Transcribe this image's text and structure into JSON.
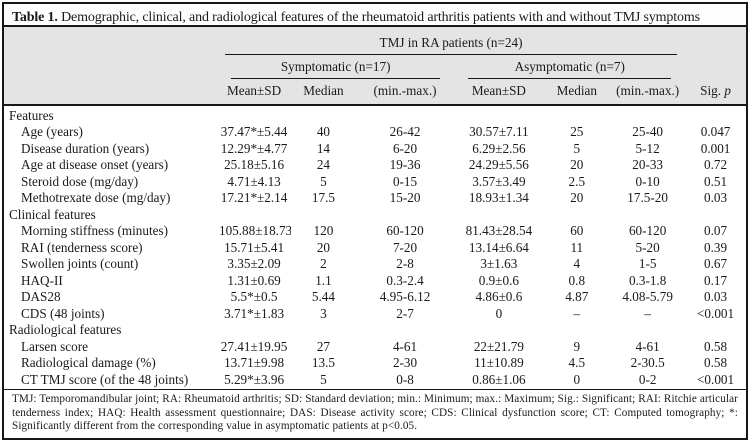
{
  "title": {
    "label": "Table 1.",
    "text": " Demographic, clinical, and radiological features of the rheumatoid arthritis patients with and without TMJ symptoms"
  },
  "header": {
    "span_all": "TMJ in RA patients (n=24)",
    "group_symptomatic": "Symptomatic (n=17)",
    "group_asymptomatic": "Asymptomatic (n=7)",
    "col_mean_sd_sym": "Mean±SD",
    "col_median_sym": "Median",
    "col_minmax_sym": "(min.-max.)",
    "col_mean_sd_asym": "Mean±SD",
    "col_median_asym": "Median",
    "col_minmax_asym": "(min.-max.)",
    "col_sig": "Sig. ",
    "col_sig_italic": "p"
  },
  "rows": [
    {
      "type": "section",
      "label": "Features"
    },
    {
      "type": "data",
      "label": "Age (years)",
      "cells": [
        "37.47*±5.44",
        "40",
        "26-42",
        "30.57±7.11",
        "25",
        "25-40",
        "0.047"
      ]
    },
    {
      "type": "data",
      "label": "Disease duration (years)",
      "cells": [
        "12.29*±4.77",
        "14",
        "6-20",
        "6.29±2.56",
        "5",
        "5-12",
        "0.001"
      ]
    },
    {
      "type": "data",
      "label": "Age at disease onset (years)",
      "cells": [
        "25.18±5.16",
        "24",
        "19-36",
        "24.29±5.56",
        "20",
        "20-33",
        "0.72"
      ]
    },
    {
      "type": "data",
      "label": "Steroid dose (mg/day)",
      "cells": [
        "4.71±4.13",
        "5",
        "0-15",
        "3.57±3.49",
        "2.5",
        "0-10",
        "0.51"
      ]
    },
    {
      "type": "data",
      "label": "Methotrexate dose (mg/day)",
      "cells": [
        "17.21*±2.14",
        "17.5",
        "15-20",
        "18.93±1.34",
        "20",
        "17.5-20",
        "0.03"
      ]
    },
    {
      "type": "section",
      "label": "Clinical features"
    },
    {
      "type": "data",
      "label": "Morning stiffness (minutes)",
      "cells": [
        "105.88±18.73",
        "120",
        "60-120",
        "81.43±28.54",
        "60",
        "60-120",
        "0.07"
      ]
    },
    {
      "type": "data",
      "label": "RAI (tenderness score)",
      "cells": [
        "15.71±5.41",
        "20",
        "7-20",
        "13.14±6.64",
        "11",
        "5-20",
        "0.39"
      ]
    },
    {
      "type": "data",
      "label": "Swollen joints (count)",
      "cells": [
        "3.35±2.09",
        "2",
        "2-8",
        "3±1.63",
        "4",
        "1-5",
        "0.67"
      ]
    },
    {
      "type": "data",
      "label": "HAQ-II",
      "cells": [
        "1.31±0.69",
        "1.1",
        "0.3-2.4",
        "0.9±0.6",
        "0.8",
        "0.3-1.8",
        "0.17"
      ]
    },
    {
      "type": "data",
      "label": "DAS28",
      "cells": [
        "5.5*±0.5",
        "5.44",
        "4.95-6.12",
        "4.86±0.6",
        "4.87",
        "4.08-5.79",
        "0.03"
      ]
    },
    {
      "type": "data",
      "label": "CDS (48 joints)",
      "cells": [
        "3.71*±1.83",
        "3",
        "2-7",
        "0",
        "–",
        "–",
        "<0.001"
      ]
    },
    {
      "type": "section",
      "label": "Radiological features"
    },
    {
      "type": "data",
      "label": "Larsen score",
      "cells": [
        "27.41±19.95",
        "27",
        "4-61",
        "22±21.79",
        "9",
        "4-61",
        "0.58"
      ]
    },
    {
      "type": "data",
      "label": "Radiological damage (%)",
      "cells": [
        "13.71±9.98",
        "13.5",
        "2-30",
        "11±10.89",
        "4.5",
        "2-30.5",
        "0.58"
      ]
    },
    {
      "type": "data",
      "label": "CT TMJ score (of the 48 joints)",
      "cells": [
        "5.29*±3.96",
        "5",
        "0-8",
        "0.86±1.06",
        "0",
        "0-2",
        "<0.001"
      ]
    }
  ],
  "footnote": "TMJ: Temporomandibular joint; RA: Rheumatoid arthritis; SD: Standard deviation; min.: Minimum; max.: Maximum; Sig.: Significant; RAI: Ritchie articular tenderness index; HAQ: Health assessment questionnaire; DAS: Disease activity score; CDS: Clinical dysfunction score; CT: Computed tomography; *: Significantly different from the corresponding value in asymptomatic patients at p<0.05.",
  "colors": {
    "header_bg": "#e4e4e4",
    "border": "#171717",
    "text": "#1a1a1a"
  },
  "column_semantics": [
    "feature",
    "symptomatic-mean-sd",
    "symptomatic-median",
    "symptomatic-min-max",
    "asymptomatic-mean-sd",
    "asymptomatic-median",
    "asymptomatic-min-max",
    "sig-p"
  ]
}
